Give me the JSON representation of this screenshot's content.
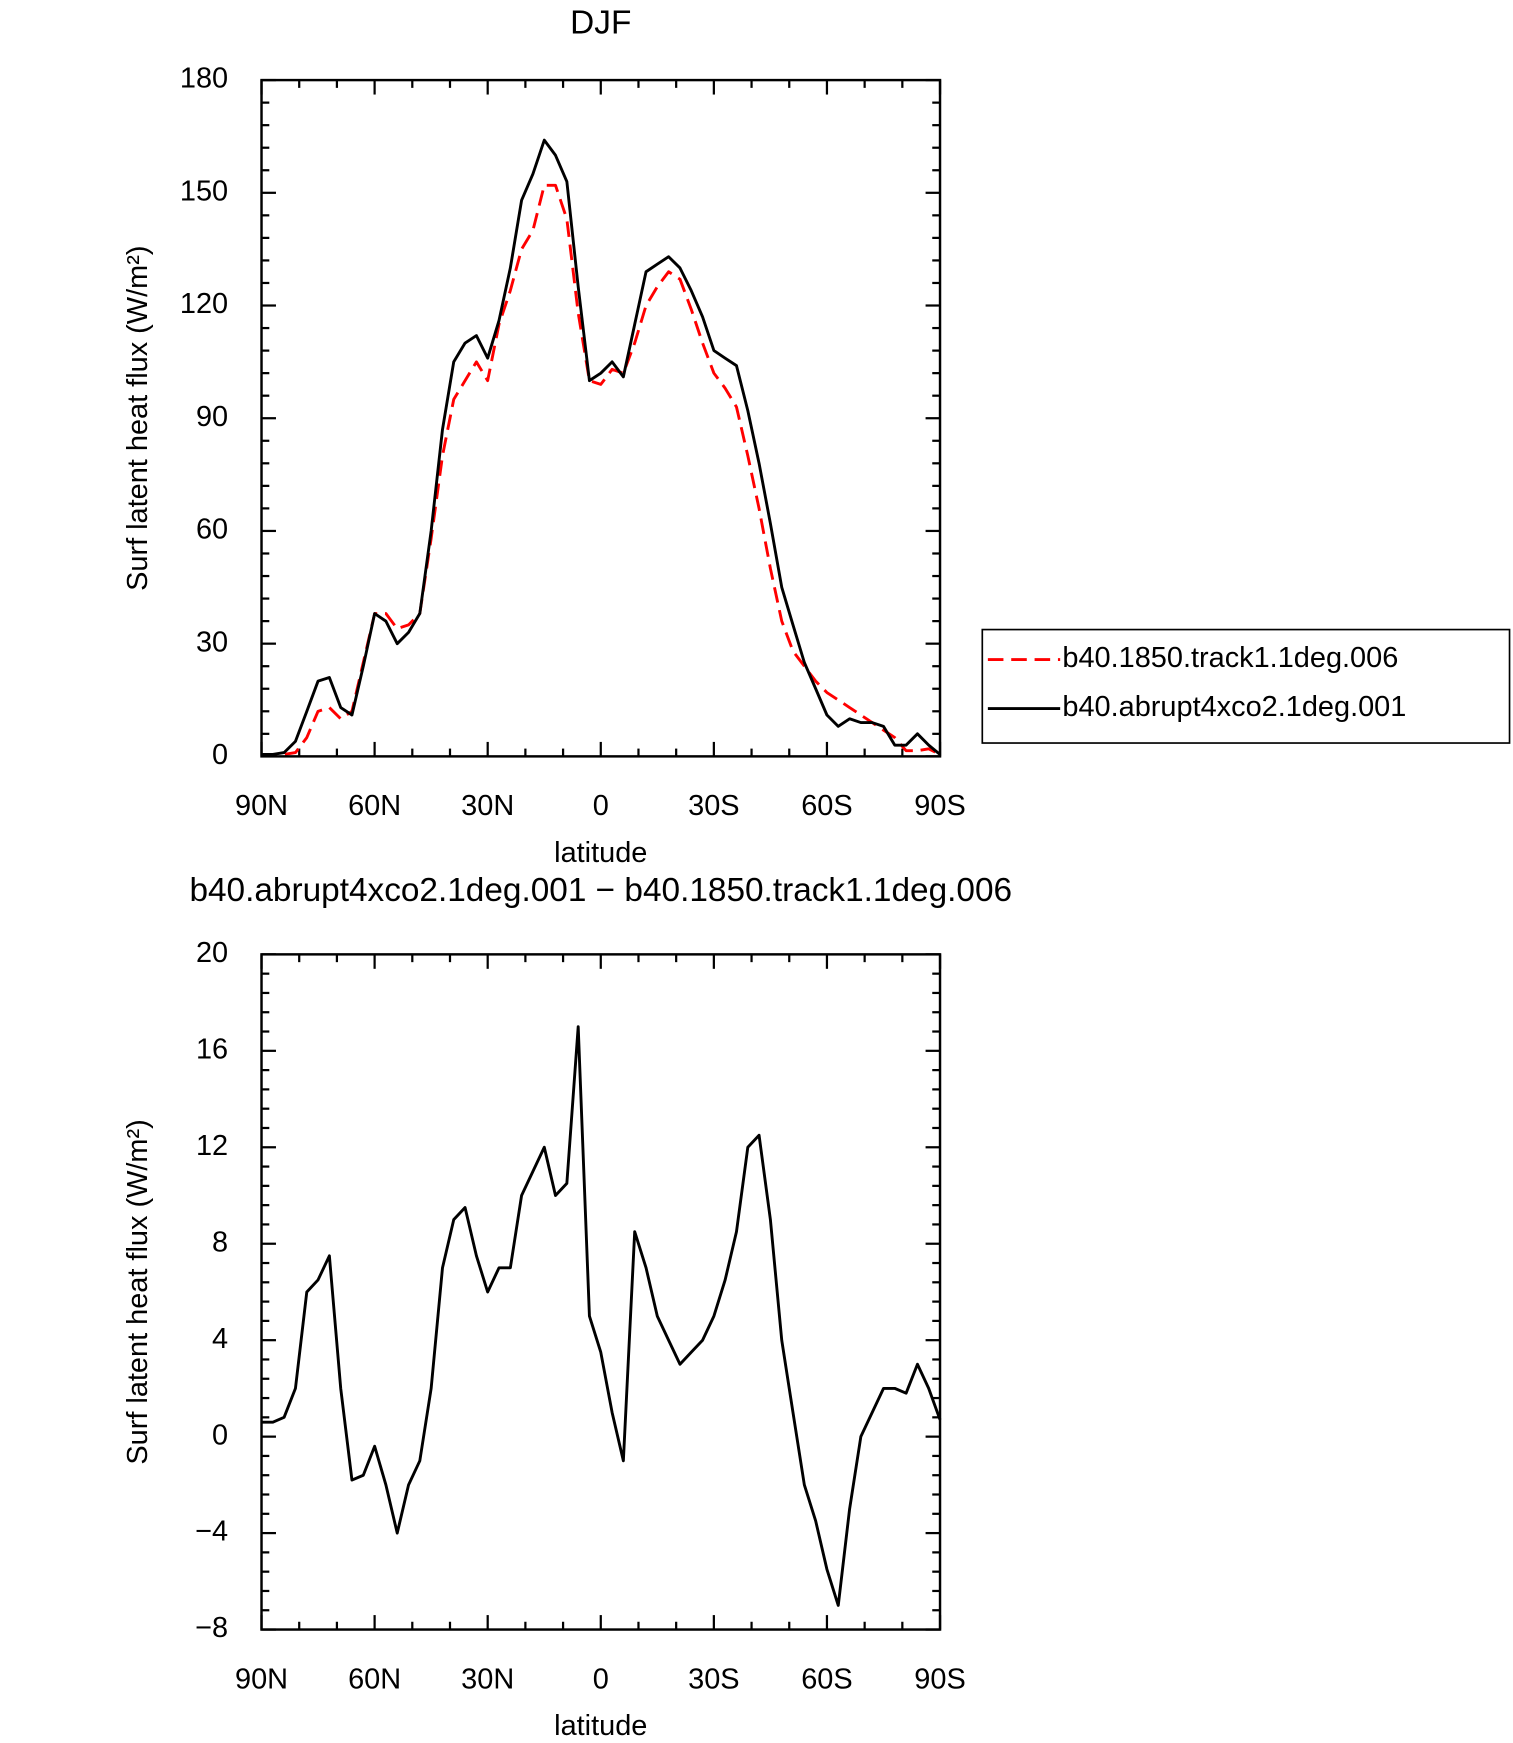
{
  "chart_data": [
    {
      "type": "line",
      "title": "DJF",
      "x_label": "latitude",
      "y_label": "Surf latent heat flux (W/m²)",
      "x": [
        90,
        87,
        84,
        81,
        78,
        75,
        72,
        69,
        66,
        63,
        60,
        57,
        54,
        51,
        48,
        45,
        42,
        39,
        36,
        33,
        30,
        27,
        24,
        21,
        18,
        15,
        12,
        9,
        6,
        3,
        0,
        -3,
        -6,
        -9,
        -12,
        -15,
        -18,
        -21,
        -24,
        -27,
        -30,
        -33,
        -36,
        -39,
        -42,
        -45,
        -48,
        -51,
        -54,
        -57,
        -60,
        -63,
        -66,
        -69,
        -72,
        -75,
        -78,
        -81,
        -84,
        -87,
        -90
      ],
      "xlim": [
        90,
        -90
      ],
      "xticks": [
        {
          "value": 90,
          "label": "90N"
        },
        {
          "value": 60,
          "label": "60N"
        },
        {
          "value": 30,
          "label": "30N"
        },
        0,
        {
          "value": -30,
          "label": "30S"
        },
        {
          "value": -60,
          "label": "60S"
        },
        {
          "value": -90,
          "label": "90S"
        }
      ],
      "ylim": [
        0,
        180
      ],
      "yticks": [
        0,
        30,
        60,
        90,
        120,
        150,
        180
      ],
      "legend_position": "right",
      "series": [
        {
          "name": "b40.1850.track1.1deg.006",
          "color": "#ff0000",
          "dash": true,
          "values": [
            0.5,
            0.5,
            0.5,
            1,
            5,
            12,
            13,
            10,
            12,
            25,
            38,
            38,
            34,
            35,
            38,
            58,
            80,
            95,
            100,
            105,
            100,
            115,
            124,
            135,
            140,
            152,
            152,
            143,
            118,
            100,
            99,
            103,
            102,
            110,
            120,
            125,
            129,
            127,
            119,
            110,
            102,
            98,
            93,
            80,
            66,
            50,
            36,
            28,
            24,
            20,
            17,
            15,
            13,
            11,
            9,
            7,
            5,
            1.5,
            1.5,
            2,
            0.5
          ]
        },
        {
          "name": "b40.abrupt4xco2.1deg.001",
          "color": "#000000",
          "dash": false,
          "values": [
            0.5,
            0.5,
            1,
            4,
            12,
            20,
            21,
            13,
            11,
            24,
            38,
            36,
            30,
            33,
            38,
            60,
            87,
            105,
            110,
            112,
            106,
            116,
            130,
            148,
            155,
            164,
            160,
            153,
            125,
            100,
            102,
            105,
            101,
            115,
            129,
            131,
            133,
            130,
            124,
            117,
            108,
            106,
            104,
            92,
            78,
            62,
            45,
            35,
            25,
            18,
            11,
            8,
            10,
            9,
            9,
            8,
            3,
            3,
            6,
            3,
            0.5
          ]
        }
      ]
    },
    {
      "type": "line",
      "title": "b40.abrupt4xco2.1deg.001 − b40.1850.track1.1deg.006",
      "x_label": "latitude",
      "y_label": "Surf latent heat flux (W/m²)",
      "x": [
        90,
        87,
        84,
        81,
        78,
        75,
        72,
        69,
        66,
        63,
        60,
        57,
        54,
        51,
        48,
        45,
        42,
        39,
        36,
        33,
        30,
        27,
        24,
        21,
        18,
        15,
        12,
        9,
        6,
        3,
        0,
        -3,
        -6,
        -9,
        -12,
        -15,
        -18,
        -21,
        -24,
        -27,
        -30,
        -33,
        -36,
        -39,
        -42,
        -45,
        -48,
        -51,
        -54,
        -57,
        -60,
        -63,
        -66,
        -69,
        -72,
        -75,
        -78,
        -81,
        -84,
        -87,
        -90
      ],
      "xlim": [
        90,
        -90
      ],
      "xticks": [
        {
          "value": 90,
          "label": "90N"
        },
        {
          "value": 60,
          "label": "60N"
        },
        {
          "value": 30,
          "label": "30N"
        },
        0,
        {
          "value": -30,
          "label": "30S"
        },
        {
          "value": -60,
          "label": "60S"
        },
        {
          "value": -90,
          "label": "90S"
        }
      ],
      "ylim": [
        -8,
        20
      ],
      "yticks": [
        {
          "value": -8,
          "label": "−8"
        },
        {
          "value": -4,
          "label": "−4"
        },
        0,
        4,
        8,
        12,
        16,
        20
      ],
      "series": [
        {
          "color": "#000000",
          "dash": false,
          "values": [
            0.6,
            0.6,
            0.8,
            2,
            6,
            6.5,
            7.5,
            2,
            -1.8,
            -1.6,
            -0.4,
            -2,
            -4,
            -2,
            -1,
            2,
            7,
            9,
            9.5,
            7.5,
            6,
            7,
            7,
            10,
            11,
            12,
            10,
            10.5,
            17,
            5,
            3.5,
            1,
            -1,
            8.5,
            7,
            5,
            4,
            3,
            3.5,
            4,
            5,
            6.5,
            8.5,
            12,
            12.5,
            9,
            4,
            1,
            -2,
            -3.5,
            -5.5,
            -7,
            -3,
            0,
            1,
            2,
            2,
            1.8,
            3,
            2,
            0.7
          ]
        }
      ]
    }
  ]
}
